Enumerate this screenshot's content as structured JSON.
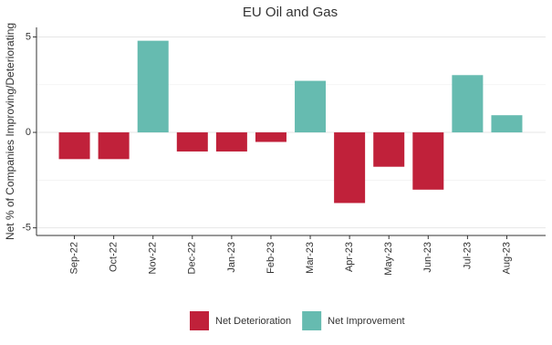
{
  "chart_data": {
    "type": "bar",
    "title": "EU Oil and Gas",
    "y_label": "Net % of Companies Improving/Deteriorating",
    "categories": [
      "Sep-22",
      "Oct-22",
      "Nov-22",
      "Dec-22",
      "Jan-23",
      "Feb-23",
      "Mar-23",
      "Apr-23",
      "May-23",
      "Jun-23",
      "Jul-23",
      "Aug-23"
    ],
    "series": [
      {
        "name": "Net Deterioration",
        "color": "#c0213a",
        "values": [
          -1.4,
          -1.4,
          null,
          -1.0,
          -1.0,
          -0.5,
          null,
          -3.7,
          -1.8,
          -3.0,
          null,
          null
        ]
      },
      {
        "name": "Net Improvement",
        "color": "#66bbb0",
        "values": [
          null,
          null,
          4.8,
          null,
          null,
          null,
          2.7,
          null,
          null,
          null,
          3.0,
          0.9
        ]
      }
    ],
    "ylim": [
      -5.4,
      5.5
    ],
    "yticks": [
      -5,
      0,
      5
    ],
    "minor_yticks": [
      -2.5,
      2.5
    ],
    "grid": true
  }
}
